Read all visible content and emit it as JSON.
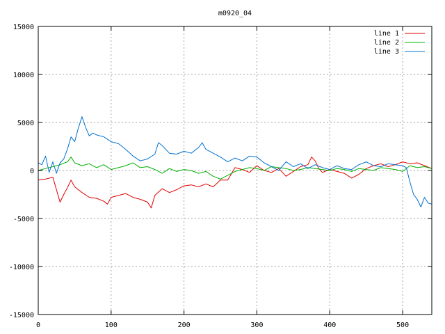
{
  "chart_data": {
    "type": "line",
    "title": "m0920_04",
    "xlabel": "",
    "ylabel": "",
    "xlim": [
      0,
      540
    ],
    "ylim": [
      -15000,
      15000
    ],
    "x_ticks": [
      0,
      100,
      200,
      300,
      400,
      500
    ],
    "y_ticks": [
      -15000,
      -10000,
      -5000,
      0,
      5000,
      10000,
      15000
    ],
    "grid": true,
    "legend_position": "top-right",
    "series": [
      {
        "name": "line 1",
        "color": "#e00000",
        "x": [
          0,
          10,
          20,
          25,
          30,
          35,
          40,
          45,
          50,
          60,
          70,
          80,
          90,
          95,
          100,
          110,
          120,
          130,
          140,
          150,
          155,
          160,
          170,
          180,
          190,
          200,
          210,
          220,
          230,
          240,
          250,
          260,
          270,
          280,
          290,
          300,
          310,
          320,
          330,
          340,
          350,
          360,
          370,
          375,
          380,
          385,
          390,
          400,
          410,
          420,
          430,
          440,
          450,
          460,
          470,
          480,
          490,
          500,
          510,
          520,
          530,
          540
        ],
        "y": [
          -1000,
          -900,
          -700,
          -2000,
          -3300,
          -2500,
          -1800,
          -1000,
          -1700,
          -2300,
          -2800,
          -2900,
          -3200,
          -3500,
          -2800,
          -2600,
          -2400,
          -2800,
          -3000,
          -3300,
          -3900,
          -2600,
          -1900,
          -2300,
          -2000,
          -1600,
          -1500,
          -1700,
          -1400,
          -1700,
          -1000,
          -1000,
          300,
          100,
          -200,
          500,
          0,
          -200,
          200,
          -600,
          -100,
          400,
          600,
          1400,
          1000,
          200,
          -200,
          100,
          -100,
          -300,
          -800,
          -400,
          200,
          500,
          700,
          400,
          600,
          900,
          700,
          800,
          500,
          200
        ]
      },
      {
        "name": "line 2",
        "color": "#00b000",
        "x": [
          0,
          10,
          20,
          30,
          40,
          45,
          50,
          60,
          70,
          80,
          90,
          100,
          110,
          120,
          130,
          140,
          150,
          160,
          170,
          180,
          190,
          200,
          210,
          220,
          230,
          240,
          250,
          260,
          270,
          280,
          290,
          300,
          310,
          320,
          330,
          340,
          350,
          360,
          370,
          380,
          390,
          400,
          410,
          420,
          430,
          440,
          450,
          460,
          470,
          480,
          490,
          500,
          510,
          520,
          530,
          540
        ],
        "y": [
          0,
          200,
          400,
          600,
          900,
          1400,
          800,
          500,
          700,
          300,
          600,
          100,
          300,
          500,
          800,
          300,
          400,
          100,
          -300,
          200,
          -100,
          100,
          0,
          -300,
          -100,
          -600,
          -900,
          -500,
          -100,
          100,
          300,
          200,
          0,
          400,
          300,
          200,
          0,
          100,
          300,
          200,
          100,
          0,
          200,
          100,
          -100,
          200,
          100,
          0,
          300,
          200,
          100,
          -100,
          500,
          300,
          400,
          200
        ]
      },
      {
        "name": "line 3",
        "color": "#0070d0",
        "x": [
          0,
          5,
          10,
          15,
          20,
          25,
          30,
          35,
          40,
          45,
          50,
          55,
          60,
          65,
          70,
          75,
          80,
          90,
          100,
          110,
          120,
          130,
          140,
          150,
          160,
          165,
          170,
          180,
          190,
          200,
          210,
          220,
          225,
          230,
          240,
          250,
          260,
          270,
          280,
          290,
          300,
          310,
          320,
          330,
          340,
          350,
          360,
          370,
          380,
          390,
          400,
          410,
          420,
          430,
          440,
          450,
          460,
          470,
          480,
          490,
          500,
          505,
          510,
          515,
          520,
          525,
          530,
          535,
          540
        ],
        "y": [
          800,
          600,
          1500,
          -200,
          900,
          -300,
          800,
          1200,
          2200,
          3500,
          3000,
          4400,
          5600,
          4500,
          3600,
          3900,
          3700,
          3500,
          3000,
          2800,
          2200,
          1500,
          1000,
          1200,
          1700,
          2900,
          2600,
          1800,
          1700,
          2000,
          1800,
          2400,
          2900,
          2200,
          1800,
          1400,
          900,
          1300,
          1000,
          1500,
          1400,
          800,
          400,
          0,
          900,
          400,
          700,
          200,
          600,
          300,
          100,
          500,
          200,
          100,
          600,
          900,
          500,
          400,
          700,
          600,
          500,
          300,
          -1200,
          -2500,
          -3000,
          -3800,
          -2800,
          -3400,
          -3500
        ]
      }
    ]
  }
}
